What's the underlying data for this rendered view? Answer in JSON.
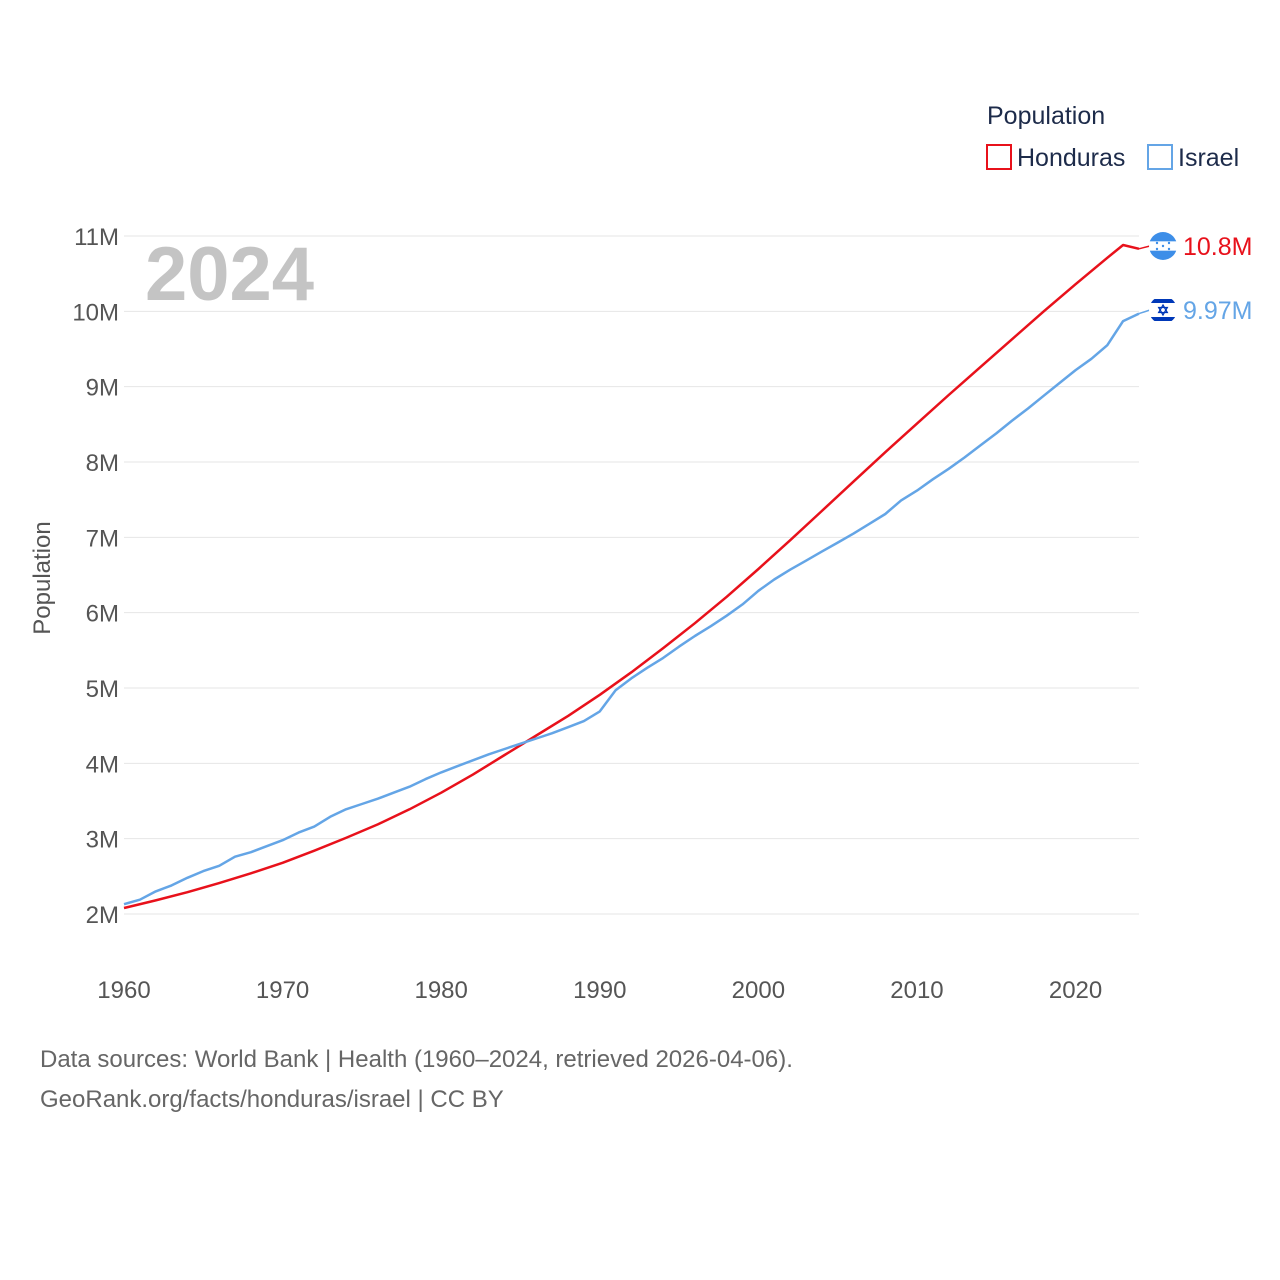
{
  "chart_data": {
    "type": "line",
    "year_label": "2024",
    "ylabel": "Population",
    "xlabel": "",
    "xlim": [
      1960,
      2024
    ],
    "ylim": [
      2000000,
      11000000
    ],
    "x_ticks": [
      1960,
      1970,
      1980,
      1990,
      2000,
      2010,
      2020
    ],
    "y_ticks": [
      {
        "value": 2000000,
        "label": "2M"
      },
      {
        "value": 3000000,
        "label": "3M"
      },
      {
        "value": 4000000,
        "label": "4M"
      },
      {
        "value": 5000000,
        "label": "5M"
      },
      {
        "value": 6000000,
        "label": "6M"
      },
      {
        "value": 7000000,
        "label": "7M"
      },
      {
        "value": 8000000,
        "label": "8M"
      },
      {
        "value": 9000000,
        "label": "9M"
      },
      {
        "value": 10000000,
        "label": "10M"
      },
      {
        "value": 11000000,
        "label": "11M"
      }
    ],
    "legend_title": "Population",
    "legend_position": "top-right",
    "series": [
      {
        "name": "Honduras",
        "color": "#e8111b",
        "end_label": "10.8M",
        "flag_icon": "honduras-flag-icon",
        "points": [
          [
            1960,
            2080000
          ],
          [
            1962,
            2180000
          ],
          [
            1964,
            2290000
          ],
          [
            1966,
            2410000
          ],
          [
            1968,
            2540000
          ],
          [
            1970,
            2680000
          ],
          [
            1972,
            2840000
          ],
          [
            1974,
            3010000
          ],
          [
            1976,
            3190000
          ],
          [
            1978,
            3390000
          ],
          [
            1980,
            3610000
          ],
          [
            1982,
            3850000
          ],
          [
            1984,
            4110000
          ],
          [
            1986,
            4370000
          ],
          [
            1988,
            4630000
          ],
          [
            1990,
            4910000
          ],
          [
            1992,
            5210000
          ],
          [
            1994,
            5530000
          ],
          [
            1996,
            5860000
          ],
          [
            1998,
            6210000
          ],
          [
            2000,
            6580000
          ],
          [
            2002,
            6960000
          ],
          [
            2004,
            7350000
          ],
          [
            2006,
            7740000
          ],
          [
            2008,
            8130000
          ],
          [
            2010,
            8510000
          ],
          [
            2012,
            8890000
          ],
          [
            2014,
            9260000
          ],
          [
            2016,
            9630000
          ],
          [
            2018,
            10000000
          ],
          [
            2020,
            10360000
          ],
          [
            2022,
            10710000
          ],
          [
            2023,
            10880000
          ],
          [
            2024,
            10830000
          ]
        ]
      },
      {
        "name": "Israel",
        "color": "#64a5e6",
        "end_label": "9.97M",
        "flag_icon": "israel-flag-icon",
        "points": [
          [
            1960,
            2130000
          ],
          [
            1961,
            2190000
          ],
          [
            1962,
            2300000
          ],
          [
            1963,
            2380000
          ],
          [
            1964,
            2480000
          ],
          [
            1965,
            2570000
          ],
          [
            1966,
            2640000
          ],
          [
            1967,
            2760000
          ],
          [
            1968,
            2820000
          ],
          [
            1969,
            2900000
          ],
          [
            1970,
            2980000
          ],
          [
            1971,
            3080000
          ],
          [
            1972,
            3160000
          ],
          [
            1973,
            3290000
          ],
          [
            1974,
            3390000
          ],
          [
            1975,
            3460000
          ],
          [
            1976,
            3530000
          ],
          [
            1977,
            3610000
          ],
          [
            1978,
            3690000
          ],
          [
            1979,
            3790000
          ],
          [
            1980,
            3880000
          ],
          [
            1981,
            3960000
          ],
          [
            1982,
            4040000
          ],
          [
            1983,
            4120000
          ],
          [
            1984,
            4190000
          ],
          [
            1985,
            4260000
          ],
          [
            1986,
            4330000
          ],
          [
            1987,
            4400000
          ],
          [
            1988,
            4480000
          ],
          [
            1989,
            4560000
          ],
          [
            1990,
            4690000
          ],
          [
            1991,
            4970000
          ],
          [
            1992,
            5130000
          ],
          [
            1993,
            5270000
          ],
          [
            1994,
            5400000
          ],
          [
            1995,
            5550000
          ],
          [
            1996,
            5690000
          ],
          [
            1997,
            5820000
          ],
          [
            1998,
            5960000
          ],
          [
            1999,
            6110000
          ],
          [
            2000,
            6290000
          ],
          [
            2001,
            6440000
          ],
          [
            2002,
            6570000
          ],
          [
            2003,
            6690000
          ],
          [
            2004,
            6810000
          ],
          [
            2005,
            6930000
          ],
          [
            2006,
            7050000
          ],
          [
            2007,
            7180000
          ],
          [
            2008,
            7310000
          ],
          [
            2009,
            7490000
          ],
          [
            2010,
            7620000
          ],
          [
            2011,
            7770000
          ],
          [
            2012,
            7910000
          ],
          [
            2013,
            8060000
          ],
          [
            2014,
            8220000
          ],
          [
            2015,
            8380000
          ],
          [
            2016,
            8550000
          ],
          [
            2017,
            8710000
          ],
          [
            2018,
            8880000
          ],
          [
            2019,
            9050000
          ],
          [
            2020,
            9220000
          ],
          [
            2021,
            9370000
          ],
          [
            2022,
            9550000
          ],
          [
            2023,
            9870000
          ],
          [
            2024,
            9970000
          ]
        ]
      }
    ]
  },
  "footer": {
    "source_line": "Data sources: World Bank | Health (1960–2024, retrieved 2026-04-06).",
    "url_line": "GeoRank.org/facts/honduras/israel | CC BY"
  }
}
